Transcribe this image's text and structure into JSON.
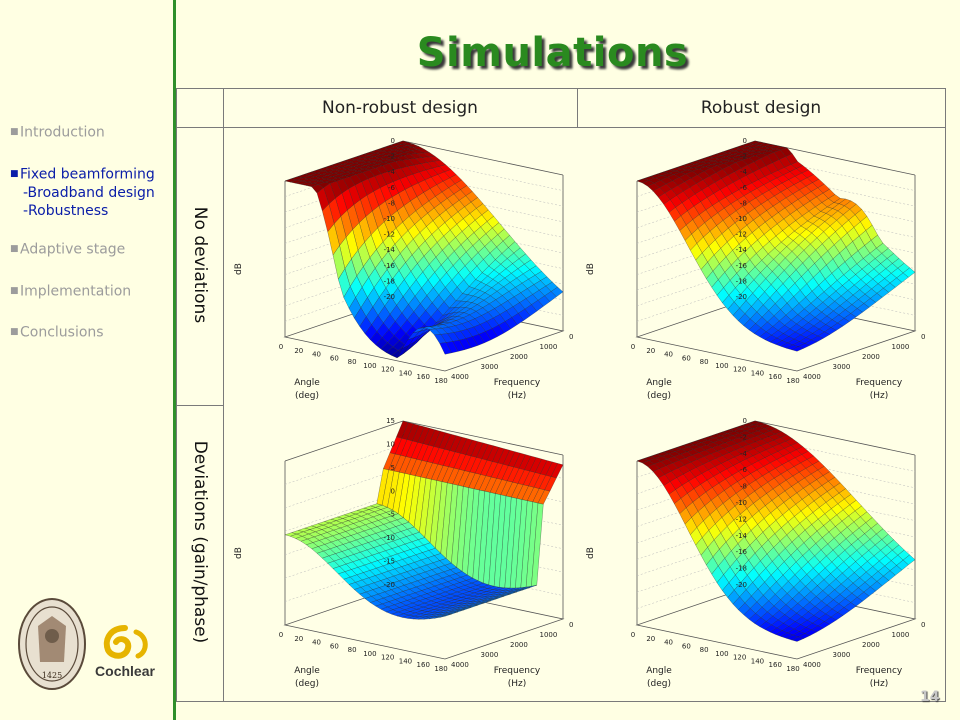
{
  "slide": {
    "title": "Simulations",
    "page_number": "14"
  },
  "sidebar": {
    "items": [
      {
        "label": "Introduction",
        "active": false
      },
      {
        "label": "Fixed beamforming",
        "active": true,
        "subitems": [
          "-Broadband design",
          "-Robustness"
        ]
      },
      {
        "label": "Adaptive stage",
        "active": false
      },
      {
        "label": "Implementation",
        "active": false
      },
      {
        "label": "Conclusions",
        "active": false
      }
    ]
  },
  "table": {
    "col_headers": [
      "Non-robust design",
      "Robust design"
    ],
    "row_headers": [
      "No deviations",
      "Deviations (gain/phase)"
    ]
  },
  "plots": {
    "zlabel": "dB",
    "xlabel_line1": "Angle",
    "xlabel_line2": "(deg)",
    "ylabel_line1": "Frequency",
    "ylabel_line2": "(Hz)",
    "angle_ticks": [
      "0",
      "20",
      "40",
      "60",
      "80",
      "100",
      "120",
      "140",
      "160",
      "180"
    ],
    "freq_ticks": [
      "0",
      "1000",
      "2000",
      "3000",
      "4000"
    ],
    "z_ticks_standard": [
      "0",
      "-2",
      "-4",
      "-6",
      "-8",
      "-10",
      "-12",
      "-14",
      "-16",
      "-18",
      "-20"
    ],
    "z_ticks_deviation": [
      "15",
      "10",
      "5",
      "0",
      "-5",
      "-10",
      "-15",
      "-20"
    ],
    "colors": {
      "high": "#8b0000",
      "mid": "#ffd200",
      "low": "#00008f"
    }
  },
  "logos": {
    "seal_year": "1425",
    "company": "Cochlear"
  }
}
